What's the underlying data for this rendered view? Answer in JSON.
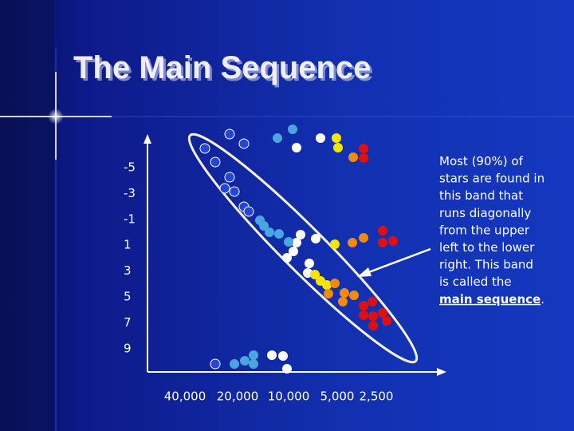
{
  "slide": {
    "title": "The Main Sequence",
    "y_labels": [
      "-5",
      "-3",
      "-1",
      "1",
      "3",
      "5",
      "7",
      "9"
    ],
    "x_labels": [
      "40,000",
      "20,000",
      "10,000",
      "5,000",
      "2,500"
    ],
    "annotation": {
      "lines": [
        "Most (90%) of",
        "stars are found in",
        "this band that",
        "runs diagonally",
        "from the upper",
        "left to the lower",
        "right.  This band",
        "is called the"
      ],
      "emphasis": "main sequence",
      "end": "."
    }
  }
}
